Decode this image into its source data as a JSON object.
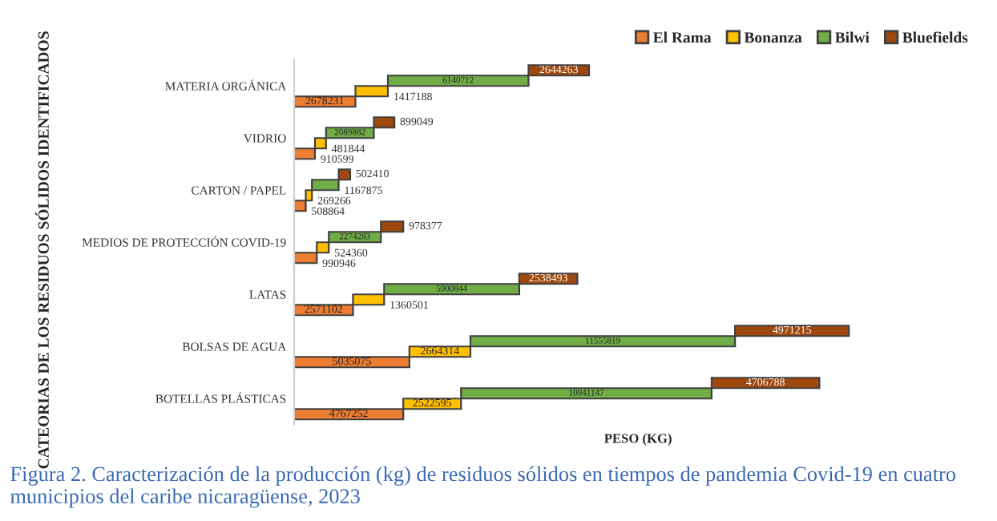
{
  "chart_data": {
    "type": "bar",
    "orientation": "horizontal",
    "stacked": true,
    "data_labels": true,
    "legend": "top right",
    "grid": false,
    "xlabel": "PESO (KG)",
    "ylabel": "CATEORIAS DE LOS RESIDUOS SÓLIDOS IDENTIFICADOS",
    "categories": [
      "MATERIA ORGÁNICA",
      "VIDRIO",
      "CARTON / PAPEL",
      "MEDIOS DE PROTECCIÓN COVID-19",
      "LATAS",
      "BOLSAS DE AGUA",
      "BOTELLAS PLÁSTICAS"
    ],
    "series": [
      {
        "name": "El Rama",
        "color": "#ed7d31",
        "values": [
          2678231,
          910599,
          508864,
          990946,
          2571102,
          5035075,
          4767252
        ]
      },
      {
        "name": "Bonanza",
        "color": "#ffc000",
        "values": [
          1417188,
          481844,
          269266,
          524360,
          1360501,
          2664314,
          2522595
        ]
      },
      {
        "name": "Bilwi",
        "color": "#70ad47",
        "values": [
          6140712,
          2089882,
          1167875,
          2274283,
          5900844,
          11555819,
          10941147
        ]
      },
      {
        "name": "Bluefields",
        "color": "#9e480e",
        "values": [
          2644263,
          899049,
          502410,
          978377,
          2538493,
          4971215,
          4706788
        ]
      }
    ],
    "annotations": [
      "Figura 2. Caracterización de la producción (kg) de residuos sólidos en tiempos de pandemia Covid-19 en cuatro municipios del caribe nicaragüense, 2023"
    ]
  }
}
